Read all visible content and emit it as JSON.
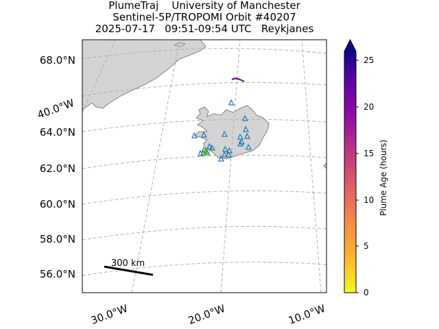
{
  "title": {
    "line1": "PlumeTraj    University of Manchester",
    "line2": "Sentinel-5P/TROPOMI Orbit #40207",
    "line3": "2025-07-17   09:51-09:54 UTC   Reykjanes"
  },
  "map": {
    "lat_labels": [
      "68.0°N",
      "64.0°N",
      "62.0°N",
      "60.0°N",
      "58.0°N",
      "56.0°N"
    ],
    "lon_labels": [
      "40.0°W",
      "30.0°W",
      "20.0°W",
      "10.0°W"
    ],
    "scale_bar_label": "300 km",
    "land_color": "#d3d3d3",
    "coast_color": "#808080",
    "grid_color": "#b0b0b0",
    "volcano_marker_color": "#1f77b4",
    "source_marker_color": "#2ca02c"
  },
  "colorbar": {
    "label": "Plume Age (hours)",
    "ticks": [
      "0",
      "5",
      "10",
      "15",
      "20",
      "25"
    ],
    "range": [
      0,
      26
    ],
    "extend": "max",
    "colormap": "plasma_r"
  }
}
